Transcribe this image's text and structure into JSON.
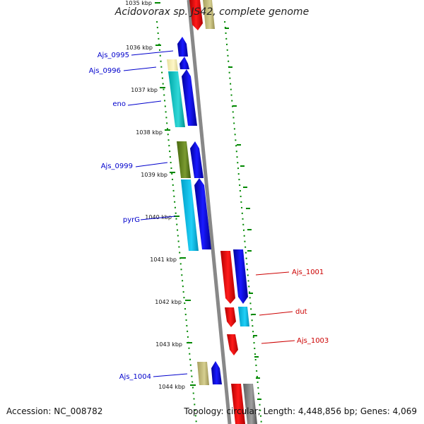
{
  "title": "Acidovorax sp. JS42, complete genome",
  "footer": {
    "accession": "Accession: NC_008782",
    "topology": "Topology: circular; Length: 4,448,856 bp; Genes: 4,069"
  },
  "ticks": [
    "1035 kbp",
    "1036 kbp",
    "1037 kbp",
    "1038 kbp",
    "1039 kbp",
    "1040 kbp",
    "1041 kbp",
    "1042 kbp",
    "1043 kbp",
    "1044 kbp"
  ],
  "gene_labels": {
    "left": [
      "Ajs_0995",
      "Ajs_0996",
      "eno",
      "Ajs_0999",
      "pyrG",
      "Ajs_1004"
    ],
    "right": [
      "Ajs_1001",
      "dut",
      "Ajs_1003"
    ]
  },
  "colors": {
    "forward_label": "#0000cc",
    "reverse_label": "#cc0000",
    "tick": "#008800",
    "backbone": "#888888"
  }
}
